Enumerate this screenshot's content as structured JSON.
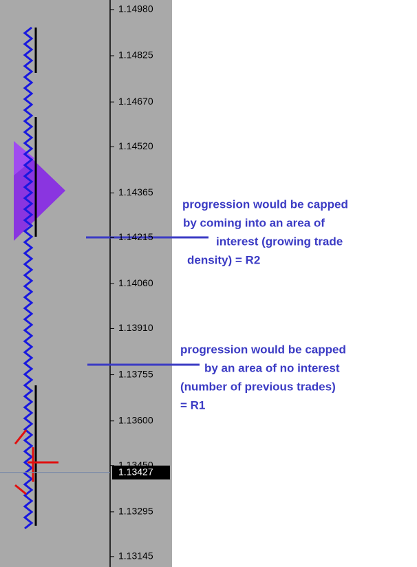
{
  "chart_data": {
    "type": "profile",
    "ylim": [
      1.1311,
      1.15012
    ],
    "yticks": [
      {
        "value": 1.1498,
        "label": "1.14980"
      },
      {
        "value": 1.14825,
        "label": "1.14825"
      },
      {
        "value": 1.1467,
        "label": "1.14670"
      },
      {
        "value": 1.1452,
        "label": "1.14520"
      },
      {
        "value": 1.14365,
        "label": "1.14365"
      },
      {
        "value": 1.14215,
        "label": "1.14215"
      },
      {
        "value": 1.1406,
        "label": "1.14060"
      },
      {
        "value": 1.1391,
        "label": "1.13910"
      },
      {
        "value": 1.13755,
        "label": "1.13755"
      },
      {
        "value": 1.136,
        "label": "1.13600"
      },
      {
        "value": 1.1345,
        "label": "1.13450"
      },
      {
        "value": 1.13295,
        "label": "1.13295"
      },
      {
        "value": 1.13145,
        "label": "1.13145"
      }
    ],
    "current_price": 1.13427,
    "annotations": [
      [
        "progression would be capped",
        "by coming into an area of",
        "interest (growing trade",
        "density) = R2"
      ],
      [
        "progression would be capped",
        "by an area of no interest",
        "(number of previous trades)",
        "= R1"
      ]
    ]
  }
}
